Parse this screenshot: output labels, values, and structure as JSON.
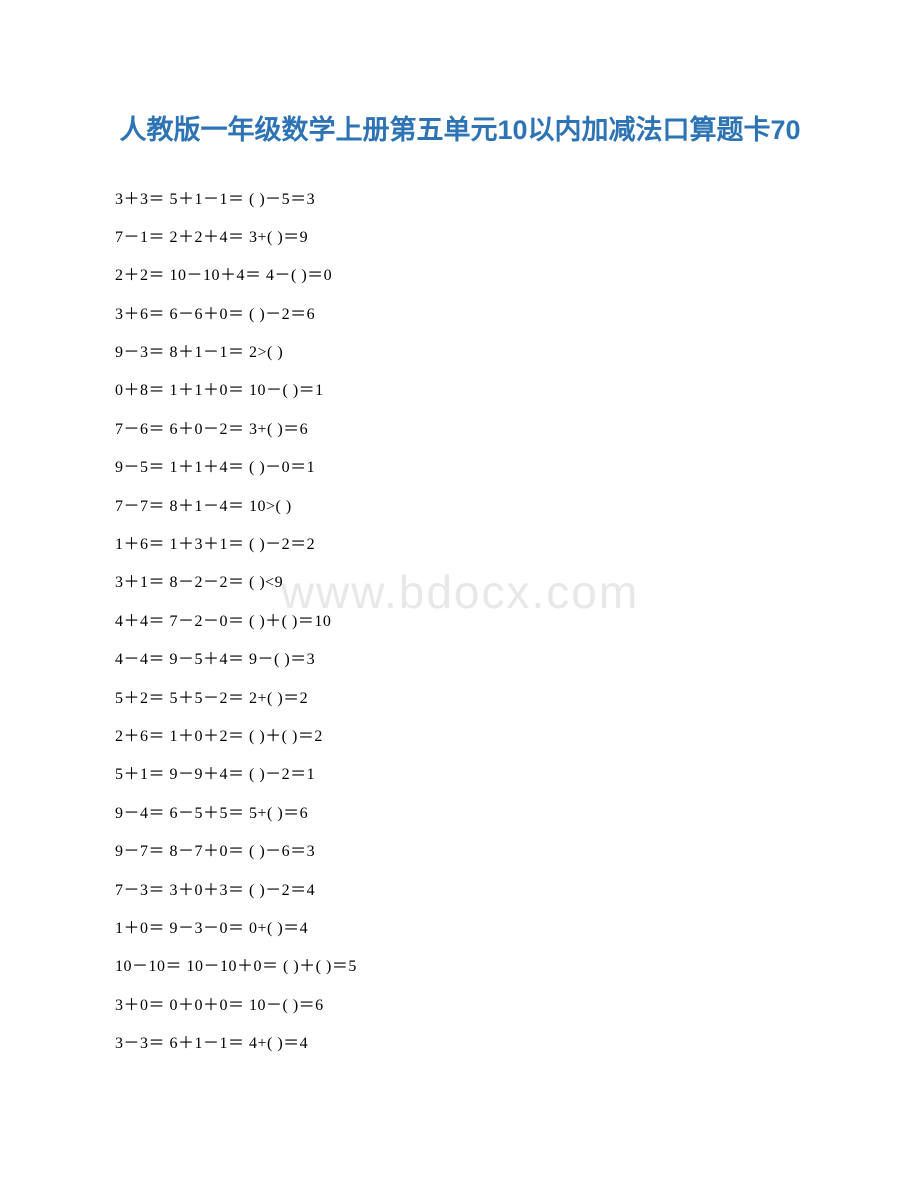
{
  "title": "人教版一年级数学上册第五单元10以内加减法口算题卡70",
  "watermark": "www.bdocx.com",
  "colors": {
    "title_color": "#2e74b5",
    "text_color": "#000000",
    "watermark_color": "#e8e8e8",
    "background": "#ffffff"
  },
  "typography": {
    "title_fontsize": 27,
    "body_fontsize": 16,
    "watermark_fontsize": 46
  },
  "rows": [
    "3＋3＝  5＋1－1＝  ( )－5＝3",
    "7－1＝  2＋2＋4＝  3+( )＝9",
    "2＋2＝  10－10＋4＝   4－( )＝0",
    "3＋6＝  6－6＋0＝  ( )－2＝6",
    "9－3＝  8＋1－1＝  2>( )",
    "0＋8＝  1＋1＋0＝  10－( )＝1",
    "7－6＝  6＋0－2＝  3+( )＝6",
    "9－5＝  1＋1＋4＝  ( )－0＝1",
    "7－7＝  8＋1－4＝  10>( )",
    "1＋6＝  1＋3＋1＝  ( )－2＝2",
    "3＋1＝  8－2－2＝  ( )<9",
    "4＋4＝  7－2－0＝  ( )＋( )＝10",
    "4－4＝  9－5＋4＝  9－( )＝3",
    "5＋2＝  5＋5－2＝  2+( )＝2",
    "2＋6＝  1＋0＋2＝  ( )＋( )＝2",
    "5＋1＝  9－9＋4＝  ( )－2＝1",
    "9－4＝  6－5＋5＝  5+( )＝6",
    "9－7＝  8－7＋0＝  ( )－6＝3",
    "7－3＝  3＋0＋3＝  ( )－2＝4",
    "1＋0＝  9－3－0＝  0+( )＝4",
    "10－10＝   10－10＋0＝   ( )＋( )＝5",
    "3＋0＝  0＋0＋0＝  10－( )＝6",
    "3－3＝  6＋1－1＝  4+( )＝4"
  ]
}
